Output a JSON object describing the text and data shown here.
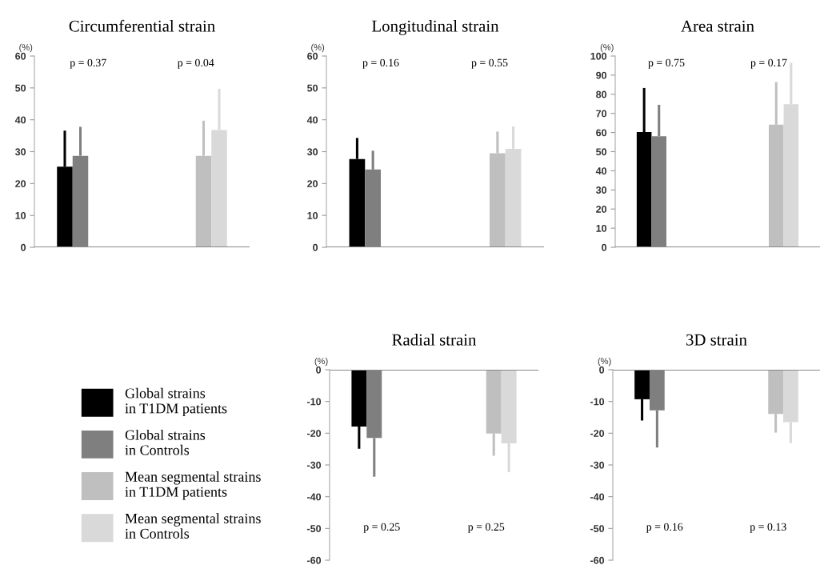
{
  "chart_data": [
    {
      "type": "bar",
      "title": "Circumferential strain",
      "ylabel": "(%)",
      "categories": [
        null,
        null
      ],
      "ylim": [
        0,
        60
      ],
      "yticks": [
        0,
        10,
        20,
        30,
        40,
        50,
        60
      ],
      "annotations": [
        "p = 0.37",
        "p = 0.04"
      ],
      "series": [
        {
          "color": "#000000",
          "values": [
            25.3,
            null
          ],
          "errors": [
            [
              25.3,
              36.6
            ],
            null
          ]
        },
        {
          "color": "#7f7f7f",
          "values": [
            28.7,
            null
          ],
          "errors": [
            [
              28.7,
              37.8
            ],
            null
          ]
        },
        {
          "color": "#bfbfbf",
          "values": [
            null,
            28.7
          ],
          "errors": [
            null,
            [
              28.7,
              39.7
            ]
          ]
        },
        {
          "color": "#d9d9d9",
          "values": [
            null,
            36.8
          ],
          "errors": [
            null,
            [
              36.8,
              49.7
            ]
          ]
        }
      ]
    },
    {
      "type": "bar",
      "title": "Longitudinal strain",
      "ylabel": "(%)",
      "categories": [
        null,
        null
      ],
      "ylim": [
        0,
        60
      ],
      "yticks": [
        0,
        10,
        20,
        30,
        40,
        50,
        60
      ],
      "annotations": [
        "p = 0.16",
        "p = 0.55"
      ],
      "series": [
        {
          "color": "#000000",
          "values": [
            27.7,
            null
          ],
          "errors": [
            [
              27.7,
              34.3
            ],
            null
          ]
        },
        {
          "color": "#7f7f7f",
          "values": [
            24.4,
            null
          ],
          "errors": [
            [
              24.4,
              30.3
            ],
            null
          ]
        },
        {
          "color": "#bfbfbf",
          "values": [
            null,
            29.5
          ],
          "errors": [
            null,
            [
              29.5,
              36.3
            ]
          ]
        },
        {
          "color": "#d9d9d9",
          "values": [
            null,
            30.9
          ],
          "errors": [
            null,
            [
              30.9,
              37.9
            ]
          ]
        }
      ]
    },
    {
      "type": "bar",
      "title": "Area strain",
      "ylabel": "(%)",
      "categories": [
        null,
        null
      ],
      "ylim": [
        0,
        100
      ],
      "yticks": [
        0,
        10,
        20,
        30,
        40,
        50,
        60,
        70,
        80,
        90,
        100
      ],
      "annotations": [
        "p = 0.75",
        "p = 0.17"
      ],
      "series": [
        {
          "color": "#000000",
          "values": [
            60.2,
            null
          ],
          "errors": [
            [
              60.2,
              83.3
            ],
            null
          ]
        },
        {
          "color": "#7f7f7f",
          "values": [
            58.1,
            null
          ],
          "errors": [
            [
              58.1,
              74.5
            ],
            null
          ]
        },
        {
          "color": "#bfbfbf",
          "values": [
            null,
            64.1
          ],
          "errors": [
            null,
            [
              64.1,
              86.4
            ]
          ]
        },
        {
          "color": "#d9d9d9",
          "values": [
            null,
            74.8
          ],
          "errors": [
            null,
            [
              74.8,
              96.5
            ]
          ]
        }
      ]
    },
    {
      "type": "bar",
      "title": "Radial strain",
      "ylabel": "(%)",
      "categories": [
        null,
        null
      ],
      "ylim": [
        -60,
        0
      ],
      "yticks": [
        -60,
        -50,
        -40,
        -30,
        -20,
        -10,
        0
      ],
      "annotations": [
        "p = 0.25",
        "p = 0.25"
      ],
      "legend": "left",
      "series": [
        {
          "name": "Global strains\nin T1DM patients",
          "color": "#000000",
          "values": [
            -17.9,
            null
          ],
          "errors": [
            [
              -24.9,
              -17.9
            ],
            null
          ]
        },
        {
          "name": "Global strains\nin Controls",
          "color": "#7f7f7f",
          "values": [
            -21.5,
            null
          ],
          "errors": [
            [
              -33.7,
              -21.5
            ],
            null
          ]
        },
        {
          "name": "Mean segmental strains\nin T1DM patients",
          "color": "#bfbfbf",
          "values": [
            null,
            -20.1
          ],
          "errors": [
            null,
            [
              -27.1,
              -20.1
            ]
          ]
        },
        {
          "name": "Mean segmental strains\nin Controls",
          "color": "#d9d9d9",
          "values": [
            null,
            -23.2
          ],
          "errors": [
            null,
            [
              -32.3,
              -23.2
            ]
          ]
        }
      ]
    },
    {
      "type": "bar",
      "title": "3D strain",
      "ylabel": "(%)",
      "categories": [
        null,
        null
      ],
      "ylim": [
        -60,
        0
      ],
      "yticks": [
        -60,
        -50,
        -40,
        -30,
        -20,
        -10,
        0
      ],
      "annotations": [
        "p = 0.16",
        "p = 0.13"
      ],
      "series": [
        {
          "color": "#000000",
          "values": [
            -9.3,
            null
          ],
          "errors": [
            [
              -16.0,
              -9.3
            ],
            null
          ]
        },
        {
          "color": "#7f7f7f",
          "values": [
            -12.8,
            null
          ],
          "errors": [
            [
              -24.5,
              -12.8
            ],
            null
          ]
        },
        {
          "color": "#bfbfbf",
          "values": [
            null,
            -13.9
          ],
          "errors": [
            null,
            [
              -19.8,
              -13.9
            ]
          ]
        },
        {
          "color": "#d9d9d9",
          "values": [
            null,
            -16.5
          ],
          "errors": [
            null,
            [
              -23.1,
              -16.5
            ]
          ]
        }
      ]
    }
  ]
}
